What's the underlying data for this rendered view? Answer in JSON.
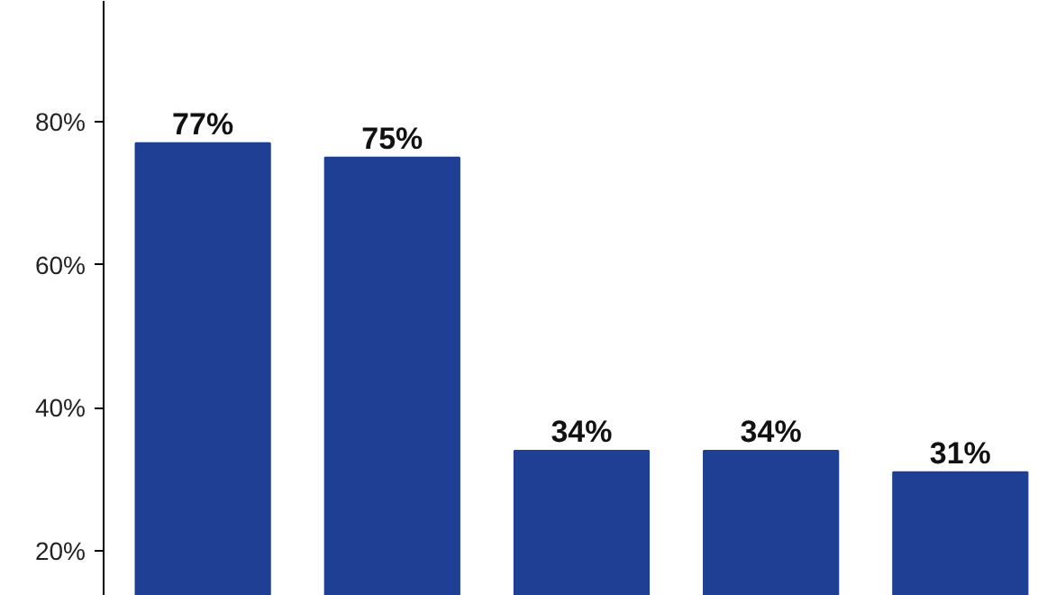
{
  "chart_data": {
    "type": "bar",
    "categories": [
      null,
      null,
      null,
      null,
      null
    ],
    "values": [
      77,
      75,
      34,
      34,
      31
    ],
    "value_labels": [
      "77%",
      "75%",
      "34%",
      "34%",
      "31%"
    ],
    "color": "#1f3f94",
    "ylim": [
      13.7,
      96.9
    ],
    "yticks": [
      {
        "value": 20,
        "label": "20%"
      },
      {
        "value": 40,
        "label": "40%"
      },
      {
        "value": 60,
        "label": "60%"
      },
      {
        "value": 80,
        "label": "80%"
      }
    ],
    "tick_labels": "y",
    "grid": false
  }
}
